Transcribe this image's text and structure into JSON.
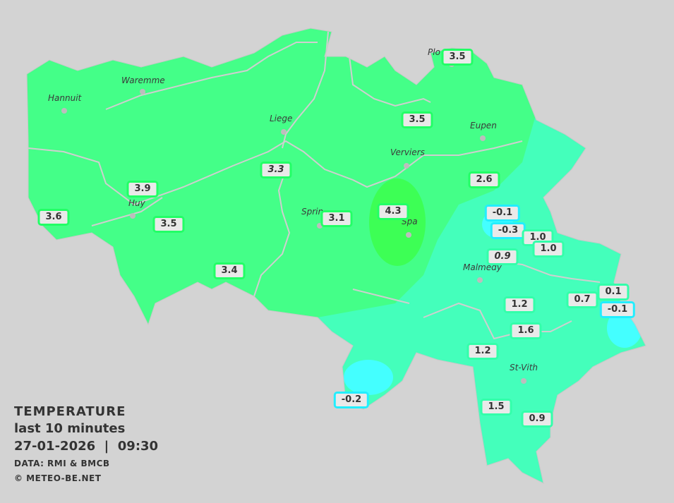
{
  "legend": {
    "title": "TEMPERATURE",
    "period": "last 10 minutes",
    "datetime": "27-01-2026  |  09:30",
    "source": "DATA: RMI & BMCB",
    "copyright": "© METEO-BE.NET"
  },
  "colors": {
    "background": "#d3d3d3",
    "zone_3_4": "#44ff88",
    "zone_4_5": "#3dff55",
    "zone_0_2": "#44ffbb",
    "zone_below_0": "#44ffff",
    "rivers": "#cfcfcf",
    "label_border_warm": "#22ff66",
    "label_border_mild": "#33ffaa",
    "label_border_cold": "#22eeff"
  },
  "cities": [
    {
      "name": "Hannuit"
    },
    {
      "name": "Waremme"
    },
    {
      "name": "Liege"
    },
    {
      "name": "Huy"
    },
    {
      "name": "Sprin"
    },
    {
      "name": "Verviers"
    },
    {
      "name": "Eupen"
    },
    {
      "name": "Spa"
    },
    {
      "name": "Plo"
    },
    {
      "name": "Malmedy"
    },
    {
      "name": "St-Vith"
    }
  ],
  "stations": [
    {
      "value": "3.5",
      "class": "warm"
    },
    {
      "value": "3.5",
      "class": "warm"
    },
    {
      "value": "3.3",
      "class": "warm",
      "italic": true
    },
    {
      "value": "3.9",
      "class": "warm"
    },
    {
      "value": "3.6",
      "class": "warm"
    },
    {
      "value": "3.5",
      "class": "warm"
    },
    {
      "value": "3.1",
      "class": "warm"
    },
    {
      "value": "4.3",
      "class": "warm"
    },
    {
      "value": "2.6",
      "class": "warm"
    },
    {
      "value": "3.4",
      "class": "warm"
    },
    {
      "value": "-0.1",
      "class": "cold"
    },
    {
      "value": "-0.3",
      "class": "cold"
    },
    {
      "value": "1.0",
      "class": "mild"
    },
    {
      "value": "1.0",
      "class": "mild"
    },
    {
      "value": "0.9",
      "class": "mild",
      "italic": true
    },
    {
      "value": "0.7",
      "class": "mild"
    },
    {
      "value": "0.1",
      "class": "mild"
    },
    {
      "value": "-0.1",
      "class": "cold"
    },
    {
      "value": "1.2",
      "class": "mild"
    },
    {
      "value": "1.6",
      "class": "mild"
    },
    {
      "value": "1.2",
      "class": "mild"
    },
    {
      "value": "1.5",
      "class": "mild"
    },
    {
      "value": "0.9",
      "class": "mild"
    },
    {
      "value": "-0.2",
      "class": "cold"
    }
  ]
}
